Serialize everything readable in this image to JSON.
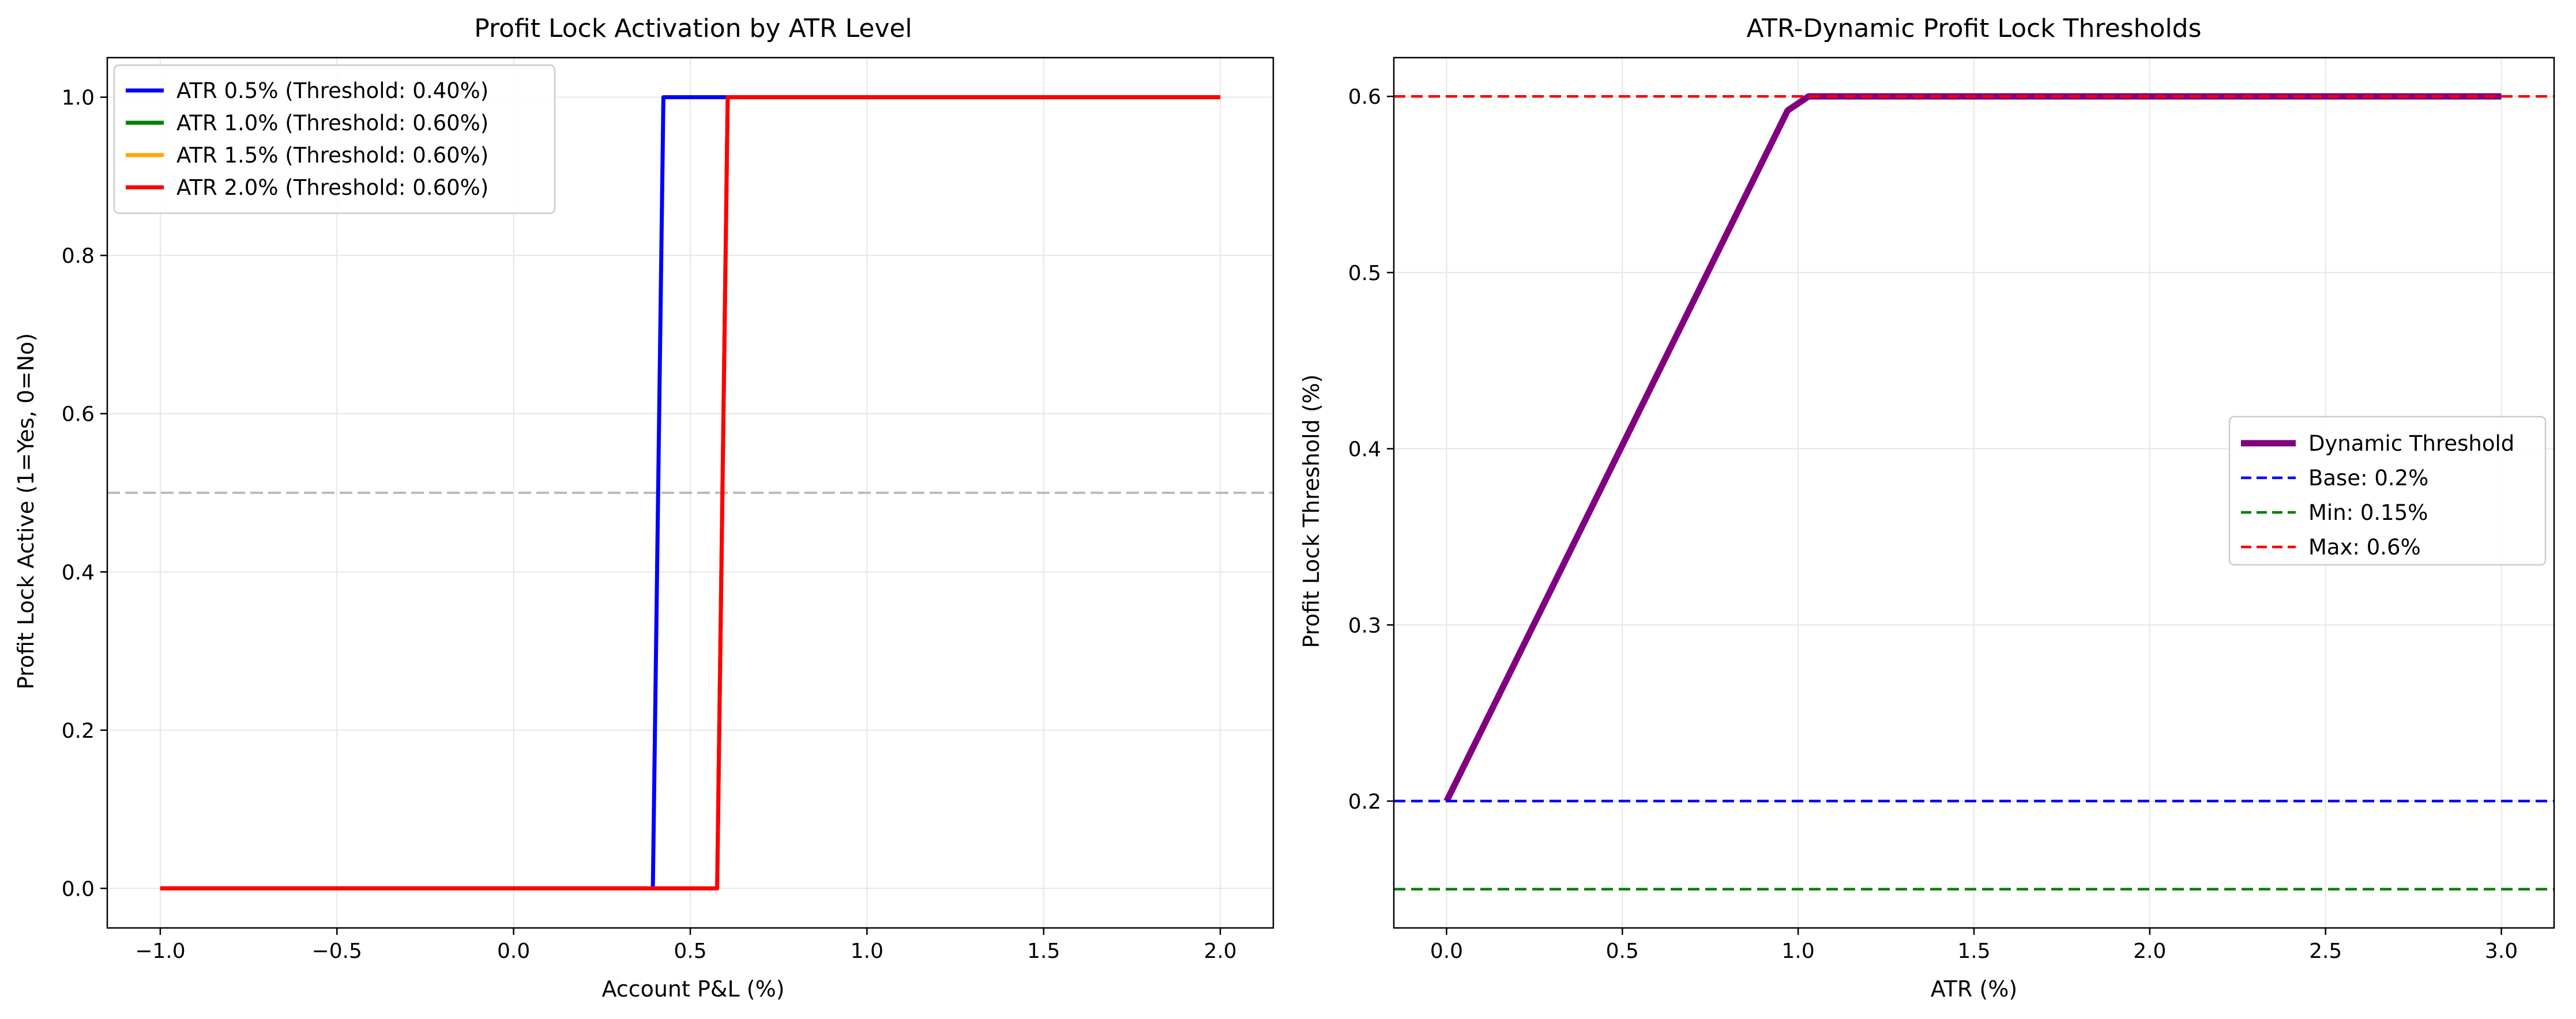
{
  "chart_data": [
    {
      "type": "line",
      "title": "Profit Lock Activation by ATR Level",
      "xlabel": "Account P&L (%)",
      "ylabel": "Profit Lock Active (1=Yes, 0=No)",
      "xlim": [
        -1.15,
        2.15
      ],
      "ylim": [
        -0.05,
        1.05
      ],
      "xticks": [
        -1.0,
        -0.5,
        0.0,
        0.5,
        1.0,
        1.5,
        2.0
      ],
      "xtick_labels": [
        "−1.0",
        "−0.5",
        "0.0",
        "0.5",
        "1.0",
        "1.5",
        "2.0"
      ],
      "yticks": [
        0.0,
        0.2,
        0.4,
        0.6,
        0.8,
        1.0
      ],
      "ytick_labels": [
        "0.0",
        "0.2",
        "0.4",
        "0.6",
        "0.8",
        "1.0"
      ],
      "grid": true,
      "legend_position": "upper-left",
      "reference_lines": [
        {
          "axis": "y",
          "value": 0.5,
          "color": "#bbbbbb",
          "style": "dashed"
        }
      ],
      "series": [
        {
          "name": "ATR 0.5% (Threshold: 0.40%)",
          "color": "#0000ff",
          "x": [
            -1.0,
            0.394,
            0.424,
            2.0
          ],
          "y": [
            0,
            0,
            1,
            1
          ]
        },
        {
          "name": "ATR 1.0% (Threshold: 0.60%)",
          "color": "#008000",
          "x": [
            -1.0,
            0.576,
            0.606,
            2.0
          ],
          "y": [
            0,
            0,
            1,
            1
          ]
        },
        {
          "name": "ATR 1.5% (Threshold: 0.60%)",
          "color": "#ffa500",
          "x": [
            -1.0,
            0.576,
            0.606,
            2.0
          ],
          "y": [
            0,
            0,
            1,
            1
          ]
        },
        {
          "name": "ATR 2.0% (Threshold: 0.60%)",
          "color": "#ff0000",
          "x": [
            -1.0,
            0.576,
            0.606,
            2.0
          ],
          "y": [
            0,
            0,
            1,
            1
          ]
        }
      ]
    },
    {
      "type": "line",
      "title": "ATR-Dynamic Profit Lock Thresholds",
      "xlabel": "ATR (%)",
      "ylabel": "Profit Lock Threshold (%)",
      "xlim": [
        -0.15,
        3.15
      ],
      "ylim": [
        0.128,
        0.622
      ],
      "xticks": [
        0.0,
        0.5,
        1.0,
        1.5,
        2.0,
        2.5,
        3.0
      ],
      "xtick_labels": [
        "0.0",
        "0.5",
        "1.0",
        "1.5",
        "2.0",
        "2.5",
        "3.0"
      ],
      "yticks": [
        0.2,
        0.3,
        0.4,
        0.5,
        0.6
      ],
      "ytick_labels": [
        "0.2",
        "0.3",
        "0.4",
        "0.5",
        "0.6"
      ],
      "grid": true,
      "legend_position": "center-right",
      "series": [
        {
          "name": "Dynamic Threshold",
          "color": "#800080",
          "style": "solid",
          "x": [
            0.0,
            0.97,
            1.03,
            3.0
          ],
          "y": [
            0.2,
            0.592,
            0.6,
            0.6
          ]
        },
        {
          "name": "Base: 0.2%",
          "color": "#0000ff",
          "style": "dashed",
          "hline": 0.2
        },
        {
          "name": "Min: 0.15%",
          "color": "#008000",
          "style": "dashed",
          "hline": 0.15
        },
        {
          "name": "Max: 0.6%",
          "color": "#ff0000",
          "style": "dashed",
          "hline": 0.6
        }
      ]
    }
  ]
}
